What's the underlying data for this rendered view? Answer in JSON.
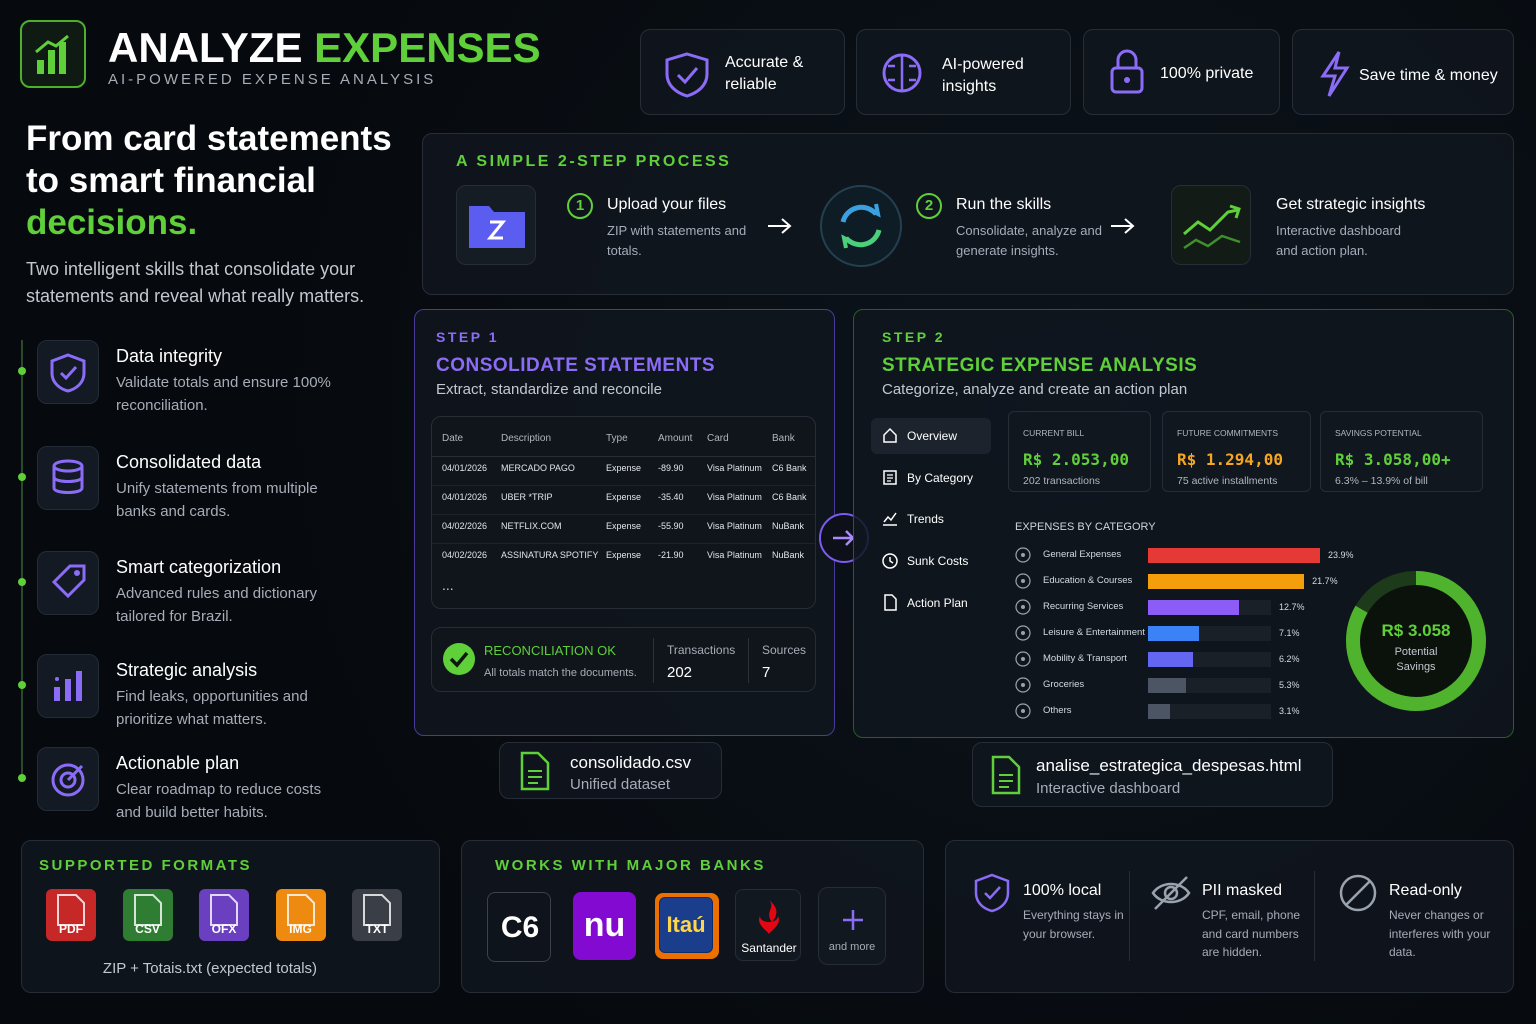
{
  "header": {
    "title_1": "ANALYZE",
    "title_2": "EXPENSES",
    "subtitle": "AI-POWERED EXPENSE ANALYSIS"
  },
  "badges": [
    "Accurate & reliable",
    "AI-powered insights",
    "100% private",
    "Save time & money"
  ],
  "hero": {
    "heading_1": "From card statements to smart financial",
    "heading_2": "decisions.",
    "description": "Two intelligent skills that consolidate your statements and reveal what really matters."
  },
  "features": [
    {
      "title": "Data integrity",
      "description": "Validate totals and ensure 100% reconciliation."
    },
    {
      "title": "Consolidated data",
      "description": "Unify statements from multiple banks and cards."
    },
    {
      "title": "Smart categorization",
      "description": "Advanced rules and dictionary tailored for Brazil."
    },
    {
      "title": "Strategic analysis",
      "description": "Find leaks, opportunities and prioritize what matters."
    },
    {
      "title": "Actionable plan",
      "description": "Clear roadmap to reduce costs and build better habits."
    }
  ],
  "process": {
    "title": "A SIMPLE 2-STEP PROCESS",
    "steps": [
      {
        "number": "1",
        "title": "Upload your files",
        "description": "ZIP with statements and totals."
      },
      {
        "number": "2",
        "title": "Run the skills",
        "description": "Consolidate, analyze and generate insights."
      },
      {
        "title": "Get strategic insights",
        "description": "Interactive dashboard and action plan."
      }
    ]
  },
  "step1": {
    "label": "STEP 1",
    "title": "CONSOLIDATE STATEMENTS",
    "subtitle": "Extract, standardize and reconcile",
    "table": {
      "columns": [
        "Date",
        "Description",
        "Type",
        "Amount",
        "Card",
        "Bank"
      ],
      "rows": [
        [
          "04/01/2026",
          "MERCADO PAGO",
          "Expense",
          "-89.90",
          "Visa Platinum",
          "C6 Bank"
        ],
        [
          "04/01/2026",
          "UBER *TRIP",
          "Expense",
          "-35.40",
          "Visa Platinum",
          "C6 Bank"
        ],
        [
          "04/02/2026",
          "NETFLIX.COM",
          "Expense",
          "-55.90",
          "Visa Platinum",
          "NuBank"
        ],
        [
          "04/02/2026",
          "ASSINATURA SPOTIFY",
          "Expense",
          "-21.90",
          "Visa Platinum",
          "NuBank"
        ]
      ],
      "more": "..."
    },
    "reconciliation": {
      "status": "RECONCILIATION OK",
      "note": "All totals match the documents.",
      "stats": [
        {
          "label": "Transactions",
          "value": "202"
        },
        {
          "label": "Sources",
          "value": "7"
        }
      ]
    },
    "output": {
      "file": "consolidado.csv",
      "description": "Unified dataset"
    }
  },
  "step2": {
    "label": "STEP 2",
    "title": "STRATEGIC EXPENSE ANALYSIS",
    "subtitle": "Categorize, analyze and create an action plan",
    "nav": [
      "Overview",
      "By Category",
      "Trends",
      "Sunk Costs",
      "Action Plan"
    ],
    "kpis": [
      {
        "label": "CURRENT BILL",
        "value": "R$ 2.053,00",
        "note": "202 transactions"
      },
      {
        "label": "FUTURE COMMITMENTS",
        "value": "R$ 1.294,00",
        "note": "75 active installments"
      },
      {
        "label": "SAVINGS POTENTIAL",
        "value": "R$ 3.058,00+",
        "note": "6.3% – 13.9% of bill"
      }
    ],
    "expenses_by_category": {
      "title": "EXPENSES BY CATEGORY",
      "categories": [
        "General Expenses",
        "Education & Courses",
        "Recurring Services",
        "Leisure & Entertainment",
        "Mobility & Transport",
        "Groceries",
        "Others"
      ],
      "values": [
        23.9,
        21.7,
        12.7,
        7.1,
        6.2,
        5.3,
        3.1
      ],
      "value_labels": [
        "23.9%",
        "21.7%",
        "12.7%",
        "7.1%",
        "6.2%",
        "5.3%",
        "3.1%"
      ],
      "colors": [
        "#e53935",
        "#f59e0b",
        "#8b5cf6",
        "#3b82f6",
        "#6366f1",
        "#4b5563",
        "#4b5563"
      ]
    },
    "savings": {
      "value": "R$ 3.058",
      "label": "Potential Savings"
    },
    "output": {
      "file": "analise_estrategica_despesas.html",
      "description": "Interactive dashboard"
    }
  },
  "formats": {
    "title": "SUPPORTED FORMATS",
    "items": [
      "PDF",
      "CSV",
      "OFX",
      "IMG",
      "TXT"
    ],
    "note": "ZIP + Totais.txt (expected totals)"
  },
  "banks": {
    "title": "WORKS WITH MAJOR BANKS",
    "items": [
      "C6",
      "nu",
      "Itaú",
      "Santander"
    ],
    "more": "and more"
  },
  "privacy": [
    {
      "title": "100% local",
      "description": "Everything stays in your browser."
    },
    {
      "title": "PII masked",
      "description": "CPF, email, phone and card numbers are hidden."
    },
    {
      "title": "Read-only",
      "description": "Never changes or interferes with your data."
    }
  ]
}
